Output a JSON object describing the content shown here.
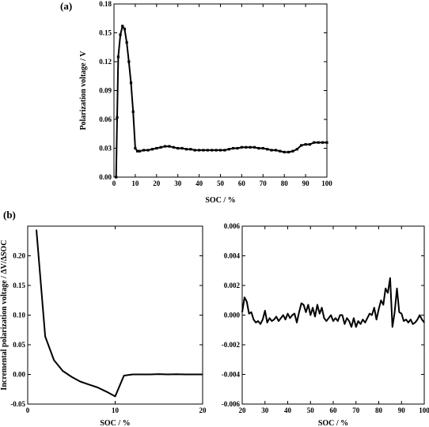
{
  "chart_data": [
    {
      "panel_label": "(a)",
      "type": "line",
      "xlabel": "SOC / %",
      "ylabel": "Polarization voltage / V",
      "xlim": [
        0,
        100
      ],
      "ylim": [
        0,
        0.18
      ],
      "xticks": [
        0,
        10,
        20,
        30,
        40,
        50,
        60,
        70,
        80,
        90,
        100
      ],
      "xtick_labels": [
        "0",
        "10",
        "20",
        "30",
        "40",
        "50",
        "60",
        "70",
        "80",
        "90",
        "100"
      ],
      "yticks": [
        0,
        0.03,
        0.06,
        0.09,
        0.12,
        0.15,
        0.18
      ],
      "ytick_labels": [
        "0.00",
        "0.03",
        "0.06",
        "0.09",
        "0.12",
        "0.15",
        "0.18"
      ],
      "markers": true,
      "series": [
        {
          "x": [
            1,
            1.5,
            2,
            3,
            4,
            5,
            6,
            7,
            8,
            9,
            10,
            11,
            12,
            14,
            16,
            18,
            20,
            22,
            24,
            26,
            28,
            30,
            32,
            34,
            36,
            38,
            40,
            42,
            44,
            46,
            48,
            50,
            52,
            54,
            56,
            58,
            60,
            62,
            64,
            66,
            68,
            70,
            72,
            74,
            76,
            78,
            80,
            82,
            84,
            86,
            88,
            90,
            92,
            94,
            96,
            98,
            100
          ],
          "y": [
            0.0,
            0.062,
            0.125,
            0.148,
            0.157,
            0.154,
            0.14,
            0.12,
            0.098,
            0.068,
            0.03,
            0.027,
            0.027,
            0.028,
            0.028,
            0.029,
            0.03,
            0.031,
            0.032,
            0.032,
            0.031,
            0.03,
            0.03,
            0.029,
            0.029,
            0.028,
            0.028,
            0.028,
            0.028,
            0.028,
            0.028,
            0.028,
            0.028,
            0.029,
            0.03,
            0.03,
            0.031,
            0.031,
            0.031,
            0.031,
            0.03,
            0.03,
            0.029,
            0.028,
            0.028,
            0.027,
            0.026,
            0.026,
            0.027,
            0.029,
            0.033,
            0.034,
            0.034,
            0.036,
            0.036,
            0.036,
            0.036
          ]
        }
      ]
    },
    {
      "panel_label": "(b)",
      "type": "line",
      "xlabel": "SOC / %",
      "ylabel": "Incremental polarization voltage / ΔV/ΔSOC",
      "xlim": [
        0,
        20
      ],
      "ylim": [
        -0.05,
        0.25
      ],
      "xticks": [
        0,
        10,
        20
      ],
      "xtick_labels": [
        "0",
        "10",
        "20"
      ],
      "yticks": [
        -0.05,
        0.0,
        0.05,
        0.1,
        0.15,
        0.2
      ],
      "ytick_labels": [
        "-0.05",
        "0.00",
        "0.05",
        "0.10",
        "0.15",
        "0.20"
      ],
      "series": [
        {
          "x": [
            1,
            2,
            3,
            4,
            5,
            6,
            7,
            8,
            9,
            10,
            11,
            12,
            13,
            14,
            15,
            16,
            17,
            18,
            19,
            20
          ],
          "y": [
            0.244,
            0.064,
            0.024,
            0.006,
            -0.004,
            -0.012,
            -0.017,
            -0.022,
            -0.029,
            -0.037,
            -0.002,
            0.0,
            0.0,
            0.0,
            0.0005,
            0.0,
            0.0003,
            0.0,
            0.0,
            0.0
          ]
        }
      ]
    },
    {
      "type": "line",
      "xlabel": "SOC / %",
      "ylabel": "",
      "xlim": [
        20,
        100
      ],
      "ylim": [
        -0.006,
        0.006
      ],
      "xticks": [
        20,
        30,
        40,
        50,
        60,
        70,
        80,
        90,
        100
      ],
      "xtick_labels": [
        "20",
        "30",
        "40",
        "50",
        "60",
        "70",
        "80",
        "90",
        "100"
      ],
      "yticks": [
        -0.006,
        -0.004,
        -0.002,
        0.0,
        0.002,
        0.004,
        0.006
      ],
      "ytick_labels": [
        "-0.006",
        "-0.004",
        "-0.002",
        "0.000",
        "0.002",
        "0.004",
        "0.006"
      ],
      "series": [
        {
          "x": [
            20,
            21,
            22,
            23,
            24,
            25,
            26,
            27,
            28,
            29,
            30,
            31,
            32,
            33,
            34,
            35,
            36,
            37,
            38,
            39,
            40,
            41,
            42,
            43,
            44,
            45,
            46,
            47,
            48,
            49,
            50,
            51,
            52,
            53,
            54,
            55,
            56,
            57,
            58,
            59,
            60,
            61,
            62,
            63,
            64,
            65,
            66,
            67,
            68,
            69,
            70,
            71,
            72,
            73,
            74,
            75,
            76,
            77,
            78,
            79,
            80,
            81,
            82,
            83,
            84,
            85,
            86,
            87,
            88,
            89,
            90,
            91,
            92,
            93,
            94,
            95,
            96,
            97,
            98,
            99,
            100
          ],
          "y": [
            0.0002,
            0.0012,
            0.0009,
            0.0001,
            0.0002,
            -0.0003,
            -0.0005,
            -0.0004,
            -0.0006,
            -0.0003,
            0.0003,
            -0.0005,
            -0.0002,
            -0.0004,
            -0.0003,
            -0.0001,
            -0.0004,
            -0.0002,
            0.0,
            -0.0003,
            0.0001,
            -0.0002,
            0.0,
            0.0001,
            -0.0005,
            0.0002,
            0.0008,
            0.0007,
            0.0002,
            0.0007,
            0.0,
            0.0005,
            -0.0001,
            0.0007,
            0.0001,
            0.0005,
            -0.0002,
            -0.0004,
            -0.0002,
            0.0,
            -0.0004,
            -0.0002,
            -0.0004,
            0.0,
            0.0,
            -0.0006,
            -0.0002,
            -0.0004,
            -0.0008,
            -0.0002,
            -0.0008,
            -0.0004,
            -0.0006,
            -0.0003,
            -0.0005,
            -0.0002,
            0.0001,
            0.0,
            0.0005,
            -0.0003,
            0.0004,
            0.001,
            0.0007,
            0.0018,
            0.0015,
            0.0025,
            -0.0008,
            0.0002,
            0.0018,
            0.0002,
            0.0001,
            -0.0004,
            -0.0003,
            -0.0005,
            -0.0003,
            -0.0006,
            -0.0005,
            -0.0003,
            0.0,
            -0.0003,
            -0.0005
          ]
        }
      ]
    }
  ]
}
